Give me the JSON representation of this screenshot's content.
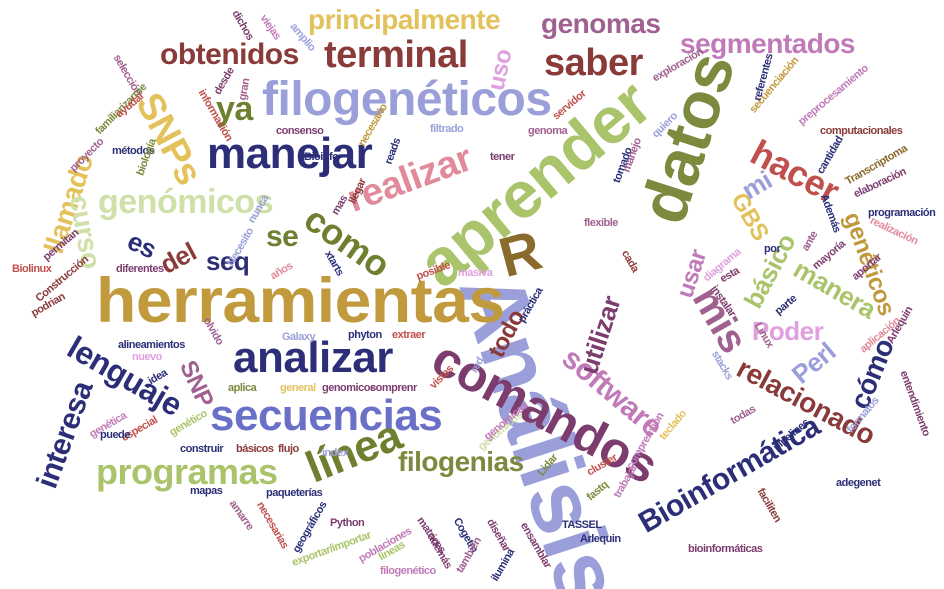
{
  "words": [
    {
      "text": "Análisis",
      "color": "#9b9fd9"
    },
    {
      "text": "herramientas",
      "color": "#c09a3c"
    },
    {
      "text": "aprender",
      "color": "#a9c46a"
    },
    {
      "text": "datos",
      "color": "#7b8a3d"
    },
    {
      "text": "comandos",
      "color": "#7c3d6e"
    },
    {
      "text": "secuencias",
      "color": "#6a70c8"
    },
    {
      "text": "filogenéticos",
      "color": "#9b9fd9"
    },
    {
      "text": "analizar",
      "color": "#2c2f78"
    },
    {
      "text": "manejar",
      "color": "#2c2f78"
    },
    {
      "text": "programas",
      "color": "#a9c46a"
    },
    {
      "text": "realizar",
      "color": "#e08a9a"
    },
    {
      "text": "terminal",
      "color": "#8b3a3a"
    },
    {
      "text": "principalmente",
      "color": "#e3c25c"
    },
    {
      "text": "genómicos",
      "color": "#cfe0a8"
    },
    {
      "text": "línea",
      "color": "#6e7f2f"
    },
    {
      "text": "Bioinformática",
      "color": "#2c2f78"
    },
    {
      "text": "filogenias",
      "color": "#7b8a3d"
    },
    {
      "text": "relacionado",
      "color": "#8b3a3a"
    },
    {
      "text": "lenguaje",
      "color": "#2c2f78"
    },
    {
      "text": "interesa",
      "color": "#2c2f78"
    },
    {
      "text": "software",
      "color": "#c07ab8"
    },
    {
      "text": "saber",
      "color": "#8b3a3a"
    },
    {
      "text": "obtenidos",
      "color": "#8b3a3a"
    },
    {
      "text": "genomas",
      "color": "#a06090"
    },
    {
      "text": "segmentados",
      "color": "#c07ab8"
    },
    {
      "text": "hacer",
      "color": "#c0504d"
    },
    {
      "text": "como",
      "color": "#6e7f2f"
    },
    {
      "text": "R",
      "color": "#8b6b2c"
    },
    {
      "text": "SNPs",
      "color": "#e3c25c"
    },
    {
      "text": "llamado",
      "color": "#e3c25c"
    },
    {
      "text": "curso",
      "color": "#cfe0a8"
    },
    {
      "text": "mis",
      "color": "#a06090"
    },
    {
      "text": "usar",
      "color": "#c07ab8"
    },
    {
      "text": "utilizar",
      "color": "#7c3d6e"
    },
    {
      "text": "Poder",
      "color": "#e0a0e0"
    },
    {
      "text": "básico",
      "color": "#a9c46a"
    },
    {
      "text": "manera",
      "color": "#a9c46a"
    },
    {
      "text": "genéticos",
      "color": "#c09a3c"
    },
    {
      "text": "Perl",
      "color": "#9b9fd9"
    },
    {
      "text": "cómo",
      "color": "#2c2f78"
    },
    {
      "text": "SNP",
      "color": "#a06090"
    },
    {
      "text": "todo",
      "color": "#8b3a3a"
    },
    {
      "text": "GBS",
      "color": "#e3c25c"
    },
    {
      "text": "mi",
      "color": "#9b9fd9"
    },
    {
      "text": "ya",
      "color": "#6e7f2f"
    },
    {
      "text": "se",
      "color": "#6e7f2f"
    },
    {
      "text": "es",
      "color": "#2c2f78"
    },
    {
      "text": "del",
      "color": "#8b3a3a"
    },
    {
      "text": "seq",
      "color": "#2c2f78"
    },
    {
      "text": "uso",
      "color": "#e0a0e0"
    },
    {
      "text": "computacionales",
      "color": "#8b3a3a"
    },
    {
      "text": "consenso",
      "color": "#7c3d6e"
    },
    {
      "text": "necesario",
      "color": "#c09a3c"
    },
    {
      "text": "filtrado",
      "color": "#9b9fd9"
    },
    {
      "text": "genoma",
      "color": "#a06090"
    },
    {
      "text": "métodos",
      "color": "#2c2f78"
    },
    {
      "text": "proyecto",
      "color": "#a06090"
    },
    {
      "text": "Bioinfo",
      "color": "#2c2f78"
    },
    {
      "text": "llegar",
      "color": "#8b3a3a"
    },
    {
      "text": "tener",
      "color": "#7c3d6e"
    },
    {
      "text": "tomado",
      "color": "#2c2f78"
    },
    {
      "text": "manejo",
      "color": "#a06090"
    },
    {
      "text": "biología",
      "color": "#7b8a3d"
    },
    {
      "text": "Transcriptoma",
      "color": "#8b6b2c"
    },
    {
      "text": "elaboración",
      "color": "#7c3d6e"
    },
    {
      "text": "programación",
      "color": "#2c2f78"
    },
    {
      "text": "realización",
      "color": "#e08a9a"
    },
    {
      "text": "Además",
      "color": "#2c2f78"
    },
    {
      "text": "mayoría",
      "color": "#7c3d6e"
    },
    {
      "text": "Biolinux",
      "color": "#c0504d"
    },
    {
      "text": "Construcción",
      "color": "#8b3a3a"
    },
    {
      "text": "podrian",
      "color": "#8b3a3a"
    },
    {
      "text": "permitan",
      "color": "#7c3d6e"
    },
    {
      "text": "diferentes",
      "color": "#7c3d6e"
    },
    {
      "text": "años",
      "color": "#e08a9a"
    },
    {
      "text": "xtarts",
      "color": "#2c2f78"
    },
    {
      "text": "posible",
      "color": "#c0504d"
    },
    {
      "text": "masiva",
      "color": "#e0a0e0"
    },
    {
      "text": "práctica",
      "color": "#2c2f78"
    },
    {
      "text": "instalar",
      "color": "#7c3d6e"
    },
    {
      "text": "Galaxy",
      "color": "#9b9fd9"
    },
    {
      "text": "phyton",
      "color": "#2c2f78"
    },
    {
      "text": "extraer",
      "color": "#c0504d"
    },
    {
      "text": "alineamientos",
      "color": "#2c2f78"
    },
    {
      "text": "nuevo",
      "color": "#e0a0e0"
    },
    {
      "text": "olvido",
      "color": "#a06090"
    },
    {
      "text": "idea",
      "color": "#2c2f78"
    },
    {
      "text": "aplica",
      "color": "#7b8a3d"
    },
    {
      "text": "general",
      "color": "#e3c25c"
    },
    {
      "text": "genomicos",
      "color": "#7c3d6e"
    },
    {
      "text": "comprenr",
      "color": "#7c3d6e"
    },
    {
      "text": "vistes",
      "color": "#c0504d"
    },
    {
      "text": "red",
      "color": "#9b9fd9"
    },
    {
      "text": "genética",
      "color": "#c07ab8"
    },
    {
      "text": "especial",
      "color": "#c0504d"
    },
    {
      "text": "genético",
      "color": "#a9c46a"
    },
    {
      "text": "construir",
      "color": "#2c2f78"
    },
    {
      "text": "básicos",
      "color": "#8b3a3a"
    },
    {
      "text": "flujo",
      "color": "#8b3a3a"
    },
    {
      "text": "index",
      "color": "#9b9fd9"
    },
    {
      "text": "genómicos",
      "color": "#cfe0a8"
    },
    {
      "text": "mapas",
      "color": "#2c2f78"
    },
    {
      "text": "puede",
      "color": "#2c2f78"
    },
    {
      "text": "paqueterías",
      "color": "#2c2f78"
    },
    {
      "text": "Python",
      "color": "#7c3d6e"
    },
    {
      "text": "TASSEL",
      "color": "#2c2f78"
    },
    {
      "text": "Arlequin",
      "color": "#2c2f78"
    },
    {
      "text": "bioinformáticas",
      "color": "#7c3d6e"
    },
    {
      "text": "adegenet",
      "color": "#2c2f78"
    },
    {
      "text": "faciliten",
      "color": "#8b3a3a"
    },
    {
      "text": "pipelines",
      "color": "#2c2f78"
    },
    {
      "text": "todas",
      "color": "#a06090"
    },
    {
      "text": "filogenético",
      "color": "#c07ab8"
    },
    {
      "text": "lineas",
      "color": "#a9c46a"
    },
    {
      "text": "ensamblar",
      "color": "#7c3d6e"
    },
    {
      "text": "ilumina",
      "color": "#2c2f78"
    },
    {
      "text": "Lidar",
      "color": "#7b8a3d"
    },
    {
      "text": "Linux",
      "color": "#a06090"
    },
    {
      "text": "cluster",
      "color": "#c0504d"
    },
    {
      "text": "diagrama",
      "color": "#e0a0e0"
    },
    {
      "text": "servidor",
      "color": "#c0504d"
    },
    {
      "text": "quiero",
      "color": "#9b9fd9"
    },
    {
      "text": "secuenciación",
      "color": "#c09a3c"
    },
    {
      "text": "preprocesamiento",
      "color": "#c07ab8"
    },
    {
      "text": "referentes",
      "color": "#2c2f78"
    },
    {
      "text": "exploración",
      "color": "#a06090"
    },
    {
      "text": "cantidad",
      "color": "#2c2f78"
    },
    {
      "text": "entendimiento",
      "color": "#7c3d6e"
    },
    {
      "text": "Arlequin",
      "color": "#7c3d6e"
    },
    {
      "text": "formatos",
      "color": "#9b9fd9"
    },
    {
      "text": "dichos",
      "color": "#7c3d6e"
    },
    {
      "text": "viejas",
      "color": "#c07ab8"
    },
    {
      "text": "selección",
      "color": "#a06090"
    },
    {
      "text": "familiarizarme",
      "color": "#7b8a3d"
    },
    {
      "text": "información",
      "color": "#c0504d"
    },
    {
      "text": "amplio",
      "color": "#9b9fd9"
    },
    {
      "text": "ayudar",
      "color": "#c0504d"
    },
    {
      "text": "desde",
      "color": "#7c3d6e"
    },
    {
      "text": "gran",
      "color": "#a06090"
    },
    {
      "text": "Necesito",
      "color": "#9b9fd9"
    },
    {
      "text": "necesarias",
      "color": "#c0504d"
    },
    {
      "text": "geográficos",
      "color": "#2c2f78"
    },
    {
      "text": "amarre",
      "color": "#a06090"
    },
    {
      "text": "exportar/importar",
      "color": "#a9c46a"
    },
    {
      "text": "poblaciones",
      "color": "#c07ab8"
    },
    {
      "text": "matrices",
      "color": "#7c3d6e"
    },
    {
      "text": "además",
      "color": "#7c3d6e"
    },
    {
      "text": "Cogetm",
      "color": "#2c2f78"
    },
    {
      "text": "también",
      "color": "#a06090"
    },
    {
      "text": "diseñar",
      "color": "#7c3d6e"
    },
    {
      "text": "genomicas",
      "color": "#c07ab8"
    },
    {
      "text": "comprensión",
      "color": "#c07ab8"
    },
    {
      "text": "trabajar",
      "color": "#c07ab8"
    },
    {
      "text": "teclado",
      "color": "#e3c25c"
    },
    {
      "text": "stacks",
      "color": "#9b9fd9"
    },
    {
      "text": "aportar",
      "color": "#7c3d6e"
    },
    {
      "text": "aplicación",
      "color": "#e08a9a"
    },
    {
      "text": "fastq",
      "color": "#7b8a3d"
    },
    {
      "text": "cada",
      "color": "#8b3a3a"
    },
    {
      "text": "parte",
      "color": "#2c2f78"
    },
    {
      "text": "esta",
      "color": "#7c3d6e"
    },
    {
      "text": "por",
      "color": "#2c2f78"
    },
    {
      "text": "ante",
      "color": "#a06090"
    },
    {
      "text": "flexible",
      "color": "#a06090"
    },
    {
      "text": "reads",
      "color": "#2c2f78"
    },
    {
      "text": "mas",
      "color": "#7c3d6e"
    },
    {
      "text": "nunca",
      "color": "#9b9fd9"
    }
  ]
}
